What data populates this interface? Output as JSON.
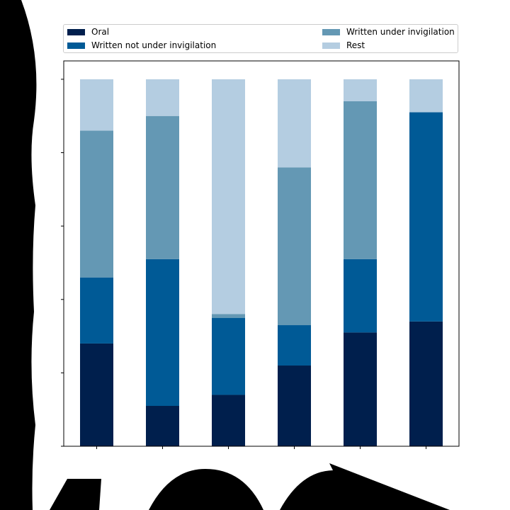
{
  "colors": {
    "oral": "#001f4d",
    "written_not_invig": "#005a96",
    "written_invig": "#6498b4",
    "rest": "#b4cde1",
    "frame": "#000000",
    "decoration": "#000000"
  },
  "legend": {
    "placement": "top, above plot",
    "items": [
      {
        "label": "Oral",
        "color_key": "oral"
      },
      {
        "label": "Written under invigilation",
        "color_key": "written_invig"
      },
      {
        "label": "Written not under invigilation",
        "color_key": "written_not_invig"
      },
      {
        "label": "Rest",
        "color_key": "rest"
      }
    ]
  },
  "chart_data": {
    "type": "bar",
    "stacked": true,
    "categories": [
      "",
      "",
      "",
      "",
      "",
      ""
    ],
    "ylim": [
      0,
      1.05
    ],
    "grid": false,
    "series": [
      {
        "name": "Oral",
        "color_key": "oral",
        "values": [
          0.28,
          0.11,
          0.14,
          0.22,
          0.31,
          0.34
        ]
      },
      {
        "name": "Written not under invigilation",
        "color_key": "written_not_invig",
        "values": [
          0.18,
          0.4,
          0.21,
          0.11,
          0.2,
          0.57
        ]
      },
      {
        "name": "Written under invigilation",
        "color_key": "written_invig",
        "values": [
          0.4,
          0.39,
          0.01,
          0.43,
          0.43,
          0.0
        ]
      },
      {
        "name": "Rest",
        "color_key": "rest",
        "values": [
          0.14,
          0.1,
          0.64,
          0.24,
          0.06,
          0.09
        ]
      }
    ]
  }
}
